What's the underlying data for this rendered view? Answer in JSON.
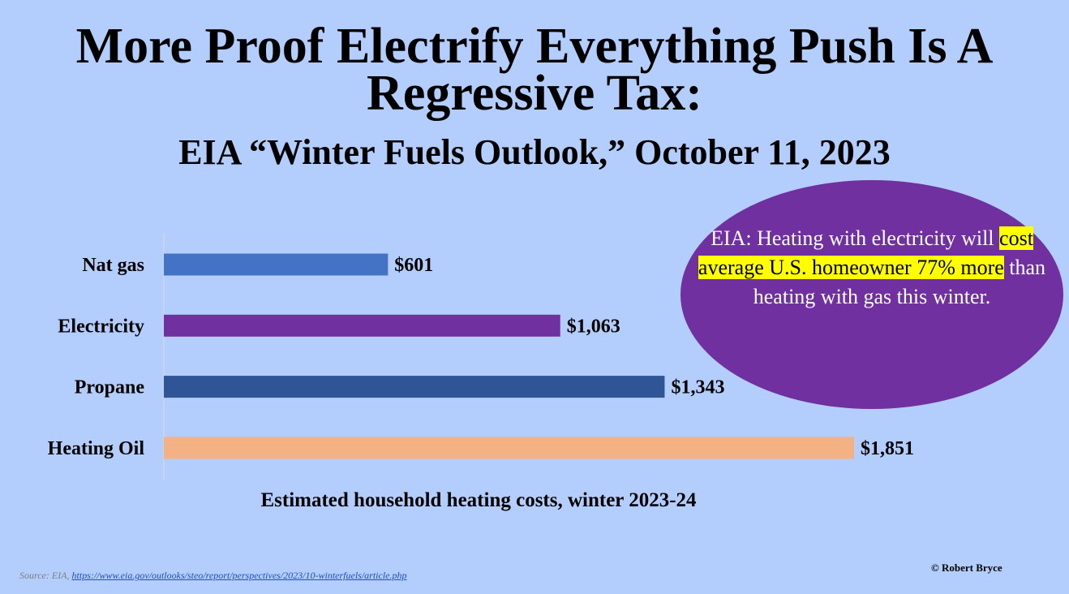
{
  "title": "More Proof Electrify Everything Push Is A Regressive Tax:",
  "subtitle": "EIA “Winter Fuels Outlook,” October 11, 2023",
  "callout": {
    "part1": "EIA: Heating with electricity will ",
    "highlight1": "cost average U.S. homeowner 77% more",
    "part2": " than heating with gas this winter.",
    "color": "#7030a0",
    "highlight_color": "#ffff00"
  },
  "footer": {
    "source_prefix": "Source: EIA, ",
    "source_link": "https://www.eia.gov/outlooks/steo/report/perspectives/2023/10-winterfuels/article.php",
    "credit": "© Robert Bryce"
  },
  "chart_data": {
    "type": "bar",
    "orientation": "horizontal",
    "categories": [
      "Nat gas",
      "Electricity",
      "Propane",
      "Heating Oil"
    ],
    "values": [
      601,
      1063,
      1343,
      1851
    ],
    "data_labels": [
      "$601",
      "$1,063",
      "$1,343",
      "$1,851"
    ],
    "colors": [
      "#4472c4",
      "#7030a0",
      "#2f5597",
      "#f4b183"
    ],
    "xlabel": "Estimated household heating costs, winter 2023-24",
    "xlim": [
      0,
      1851
    ],
    "grid": false,
    "legend": "none"
  }
}
